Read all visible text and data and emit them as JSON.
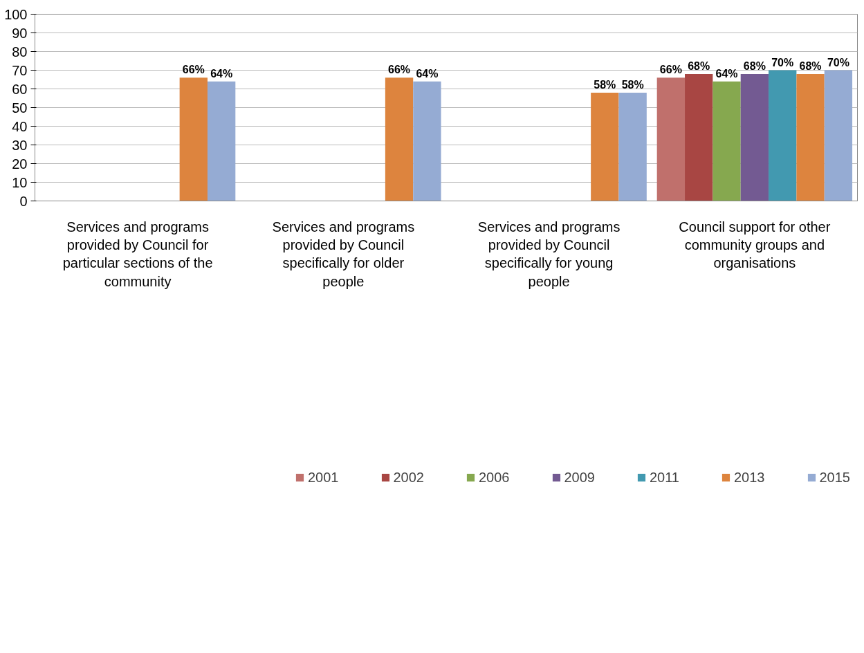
{
  "chart_data": {
    "type": "bar",
    "categories": [
      "Services and programs provided by Council for particular sections of the community",
      "Services and programs provided by Council specifically for older people",
      "Services and programs provided by Council specifically for young people",
      "Council support for other community groups and organisations"
    ],
    "series": [
      {
        "name": "2001",
        "color": "#c0706c",
        "values": [
          null,
          null,
          null,
          66
        ],
        "value_labels": [
          null,
          null,
          null,
          "66%"
        ]
      },
      {
        "name": "2002",
        "color": "#a84643",
        "values": [
          null,
          null,
          null,
          68
        ],
        "value_labels": [
          null,
          null,
          null,
          "68%"
        ]
      },
      {
        "name": "2006",
        "color": "#86a84f",
        "values": [
          null,
          null,
          null,
          64
        ],
        "value_labels": [
          null,
          null,
          null,
          "64%"
        ]
      },
      {
        "name": "2009",
        "color": "#735a92",
        "values": [
          null,
          null,
          null,
          68
        ],
        "value_labels": [
          null,
          null,
          null,
          "68%"
        ]
      },
      {
        "name": "2011",
        "color": "#4299b0",
        "values": [
          null,
          null,
          null,
          70
        ],
        "value_labels": [
          null,
          null,
          null,
          "70%"
        ]
      },
      {
        "name": "2013",
        "color": "#dd843e",
        "values": [
          66,
          66,
          58,
          68
        ],
        "value_labels": [
          "66%",
          "66%",
          "58%",
          "68%"
        ]
      },
      {
        "name": "2015",
        "color": "#95abd3",
        "values": [
          64,
          64,
          58,
          70
        ],
        "value_labels": [
          "64%",
          "64%",
          "58%",
          "70%"
        ]
      }
    ],
    "ylim": [
      0,
      100
    ],
    "yticks": [
      0,
      10,
      20,
      30,
      40,
      50,
      60,
      70,
      80,
      90,
      100
    ],
    "grid": "y",
    "legend": "bottom"
  }
}
